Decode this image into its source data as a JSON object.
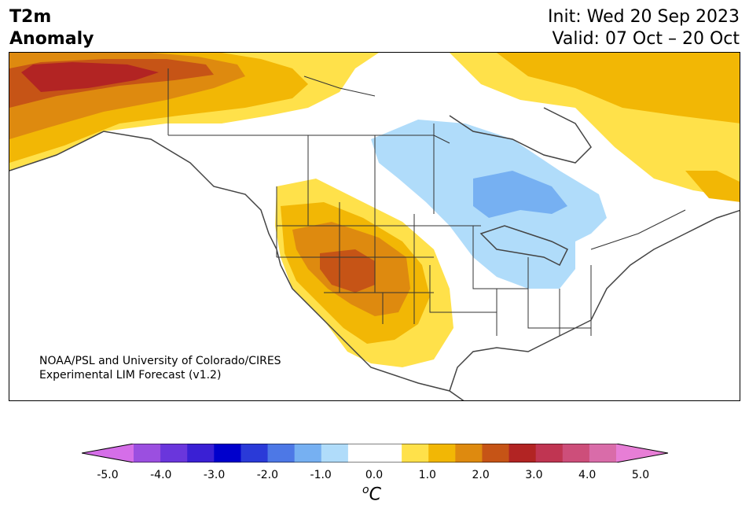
{
  "title": {
    "variable": "T2m",
    "subtitle": "Anomaly",
    "init": "Init: Wed 20 Sep 2023",
    "valid": "Valid: 07 Oct – 20 Oct"
  },
  "credit": {
    "line1": "NOAA/PSL and University of Colorado/CIRES",
    "line2": "Experimental LIM Forecast (v1.2)"
  },
  "colorbar": {
    "unit_super": "o",
    "unit_main": "C",
    "colors": [
      "#d56ee8",
      "#9b4fe0",
      "#6a36dc",
      "#3a20d4",
      "#0000cc",
      "#2a3ad8",
      "#4d78e6",
      "#76b0f2",
      "#b0dcfa",
      "#ffffff",
      "#ffffff",
      "#ffe14a",
      "#f2b705",
      "#de8a0f",
      "#c65416",
      "#b22423",
      "#c03552",
      "#cd4e7a",
      "#d96ca9",
      "#e77ed6"
    ],
    "min_arrow_color": "#d56ee8",
    "max_arrow_color": "#e77ed6",
    "tick_labels": [
      "-5.0",
      "-4.0",
      "-3.0",
      "-2.0",
      "-1.0",
      "0.0",
      "1.0",
      "2.0",
      "3.0",
      "4.0",
      "5.0"
    ]
  },
  "map": {
    "region": "North America",
    "palette": {
      "yellow": "#ffe14a",
      "gold": "#f2b705",
      "orange": "#de8a0f",
      "burnt": "#c65416",
      "red": "#b22423",
      "lightblue": "#b0dcfa",
      "blue": "#76b0f2"
    }
  }
}
